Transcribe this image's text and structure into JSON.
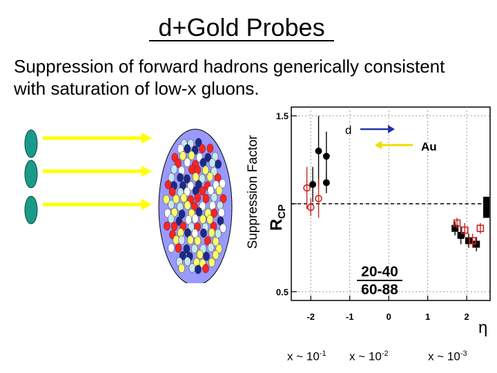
{
  "slide": {
    "title": "d+Gold Probes",
    "subtitle_line1": "Suppression of forward hadrons generically consistent",
    "subtitle_line2": "with saturation of low-x gluons.",
    "y_label": "Suppression Factor",
    "x_labels": [
      {
        "base": "x ~ 10",
        "exp": "-1"
      },
      {
        "base": "x ~ 10",
        "exp": "-2"
      },
      {
        "base": "x ~ 10",
        "exp": "-3"
      }
    ]
  },
  "illustration": {
    "deuteron_color": "#1a9a8a",
    "arrow_color": "#ffff00",
    "nucleus_color": "#9999ff",
    "nucleon_colors": [
      "#c8e6f0",
      "#ffff66",
      "#ff2222",
      "#1a2a8a",
      "#ffffff"
    ]
  },
  "chart_data": {
    "type": "scatter",
    "ylabel": "R",
    "ylabel_sub": "CP",
    "xlabel": "η",
    "xlim": [
      -2.5,
      2.6
    ],
    "ylim": [
      0.45,
      1.55
    ],
    "x_ticks": [
      -2,
      -1,
      0,
      1,
      2
    ],
    "y_ticks": [
      0.5,
      1.0,
      1.5
    ],
    "y_tick_labels": [
      "0.5",
      "",
      "1.5"
    ],
    "reference_line": 1.0,
    "legend_line1": "20-40",
    "legend_line2": "60-88",
    "annotation_d": "d",
    "annotation_au": "Au",
    "series": [
      {
        "marker": "filled-circle",
        "color": "#000000",
        "points": [
          {
            "x": -1.95,
            "y": 1.11,
            "err": 0.1
          },
          {
            "x": -1.8,
            "y": 1.3,
            "err": 0.2
          },
          {
            "x": -1.6,
            "y": 1.27,
            "err": 0.14
          },
          {
            "x": -1.6,
            "y": 1.12,
            "err": 0.06
          }
        ]
      },
      {
        "marker": "open-circle",
        "color": "#cc2222",
        "points": [
          {
            "x": -2.1,
            "y": 1.09,
            "err": 0.12
          },
          {
            "x": -2.0,
            "y": 0.98,
            "err": 0.05
          },
          {
            "x": -1.8,
            "y": 1.03,
            "err": 0.11
          }
        ]
      },
      {
        "marker": "filled-square",
        "color": "#000000",
        "points": [
          {
            "x": 1.7,
            "y": 0.86,
            "err": 0.04
          },
          {
            "x": 1.85,
            "y": 0.82,
            "err": 0.05
          },
          {
            "x": 2.05,
            "y": 0.79,
            "err": 0.04
          },
          {
            "x": 2.25,
            "y": 0.77,
            "err": 0.04
          }
        ]
      },
      {
        "marker": "open-square",
        "color": "#cc2222",
        "points": [
          {
            "x": 1.75,
            "y": 0.89,
            "err": 0.03
          },
          {
            "x": 1.95,
            "y": 0.85,
            "err": 0.04
          },
          {
            "x": 2.15,
            "y": 0.79,
            "err": 0.04
          },
          {
            "x": 2.35,
            "y": 0.86,
            "err": 0.03
          }
        ]
      }
    ],
    "systematic_band": {
      "y_low": 0.92,
      "y_high": 1.04,
      "color": "#000000"
    }
  }
}
